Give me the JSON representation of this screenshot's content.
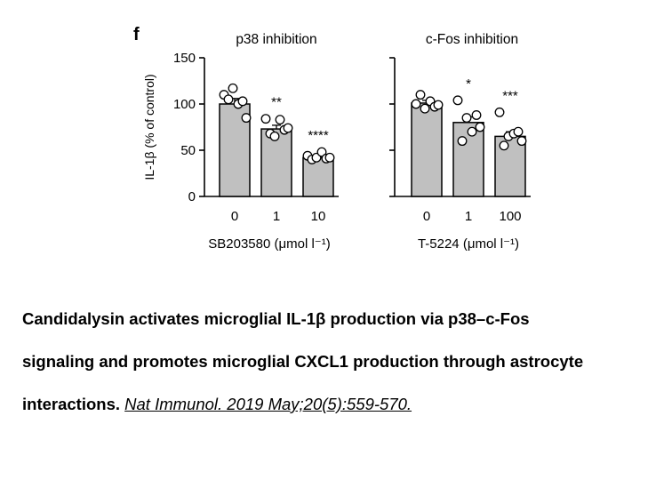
{
  "panel_label": "f",
  "chart_data": [
    {
      "type": "bar",
      "title": "p38 inhibition",
      "xlabel": "SB203580 (μmol l⁻¹)",
      "ylabel": "IL-1β (% of control)",
      "ylim": [
        0,
        150
      ],
      "yticks": [
        0,
        50,
        100,
        150
      ],
      "categories": [
        "0",
        "1",
        "10"
      ],
      "values": [
        100,
        73,
        42
      ],
      "error": [
        6,
        4,
        2
      ],
      "significance": [
        "",
        "**",
        "****"
      ],
      "points": [
        [
          110,
          105,
          117,
          100,
          103,
          85
        ],
        [
          84,
          68,
          65,
          83,
          72,
          74
        ],
        [
          44,
          40,
          42,
          48,
          41,
          42
        ]
      ],
      "grid": false,
      "bar_color": "#c0c0c0"
    },
    {
      "type": "bar",
      "title": "c-Fos inhibition",
      "xlabel": "T-5224 (μmol l⁻¹)",
      "ylabel": "",
      "ylim": [
        0,
        150
      ],
      "yticks": [
        0,
        50,
        100,
        150
      ],
      "categories": [
        "0",
        "1",
        "100"
      ],
      "values": [
        101,
        80,
        65
      ],
      "error": [
        3,
        6,
        5
      ],
      "significance": [
        "",
        "*",
        "***"
      ],
      "points": [
        [
          100,
          110,
          95,
          103,
          97,
          99
        ],
        [
          104,
          60,
          85,
          70,
          88,
          75
        ],
        [
          91,
          55,
          65,
          68,
          70,
          60
        ]
      ],
      "grid": false,
      "bar_color": "#c0c0c0"
    }
  ],
  "caption": {
    "line1": "Candidalysin activates microglial IL-1β production via p38–c-Fos",
    "line2": "signaling and promotes microglial CXCL1 production through astrocyte",
    "line3": "interactions.",
    "citation": "Nat Immunol. 2019 May;20(5):559-570. "
  }
}
